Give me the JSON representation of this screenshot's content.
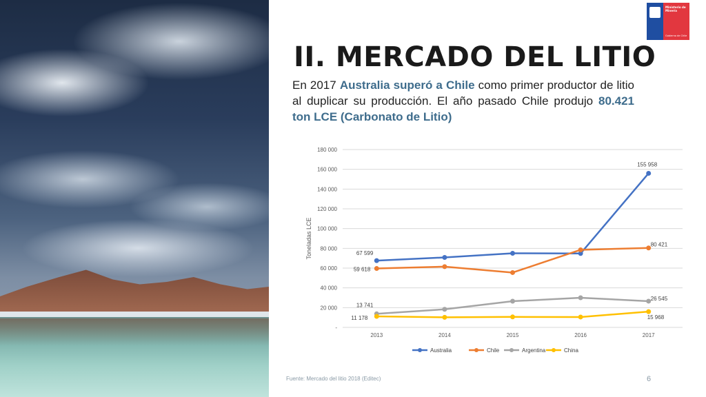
{
  "logo": {
    "line1": "Ministerio de Minería",
    "line2": "Gobierno de Chile"
  },
  "slide": {
    "title": "II. MERCADO DEL LITIO",
    "text_1": "En 2017 ",
    "text_2": "Australia superó a Chile",
    "text_3": " como primer productor de litio al duplicar su producción. El año pasado Chile produjo ",
    "text_4": "80.421 ton LCE (Carbonato de Litio)",
    "footer": "Fuente: Mercado del litio 2018 (Editec)",
    "page_number": "6"
  },
  "colors": {
    "Australia": "#4472c4",
    "Chile": "#ed7d31",
    "Argentina": "#a5a5a5",
    "China": "#ffc000",
    "highlight": "#3e6c8c"
  },
  "chart_data": {
    "type": "line",
    "ylabel": "Toneladas LCE",
    "xlabel": "",
    "x": [
      "2013",
      "2014",
      "2015",
      "2016",
      "2017"
    ],
    "ylim": [
      0,
      180000
    ],
    "yticks": [
      0,
      20000,
      40000,
      60000,
      80000,
      100000,
      120000,
      140000,
      160000,
      180000
    ],
    "ytick_labels": [
      "-",
      "20 000",
      "40 000",
      "60 000",
      "80 000",
      "100 000",
      "120 000",
      "140 000",
      "160 000",
      "180 000"
    ],
    "grid": true,
    "legend_position": "bottom",
    "series": [
      {
        "name": "Australia",
        "values": [
          67599,
          70800,
          75000,
          74800,
          155958
        ],
        "labels": [
          "67 599",
          "",
          "",
          "",
          "155 958"
        ]
      },
      {
        "name": "Chile",
        "values": [
          59618,
          61500,
          55500,
          78500,
          80421
        ],
        "labels": [
          "59 618",
          "",
          "",
          "",
          "80 421"
        ]
      },
      {
        "name": "Argentina",
        "values": [
          13741,
          18300,
          26500,
          30000,
          26545
        ],
        "labels": [
          "13 741",
          "",
          "",
          "",
          "26 545"
        ]
      },
      {
        "name": "China",
        "values": [
          11178,
          10200,
          10600,
          10500,
          15968
        ],
        "labels": [
          "11 178",
          "",
          "",
          "",
          "15 968"
        ]
      }
    ]
  }
}
